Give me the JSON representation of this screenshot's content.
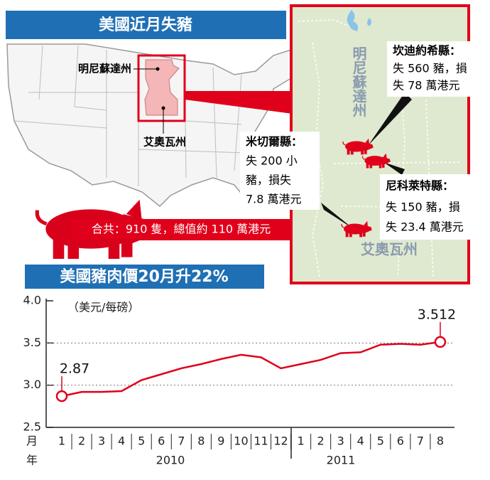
{
  "header": {
    "title": "美國近月失豬"
  },
  "map": {
    "state_labels": [
      "明尼蘇達州",
      "艾奧瓦州"
    ],
    "inset_labels": [
      "明尼蘇達州",
      "艾奧瓦州"
    ],
    "callouts": [
      {
        "title": "坎迪約希縣：",
        "lines": [
          "失 560 豬，損",
          "失 78 萬港元"
        ]
      },
      {
        "title": "米切爾縣：",
        "lines": [
          "失 200 小",
          "豬，損失",
          "7.8 萬港元"
        ]
      },
      {
        "title": "尼科萊特縣：",
        "lines": [
          "失 150 豬，損",
          "失 23.4 萬港元"
        ]
      }
    ],
    "total": "合共：910 隻，總值約 110 萬港元"
  },
  "chart_data": {
    "type": "line",
    "title": "美國豬肉價20月升22%",
    "ylabel": "（美元/每磅）",
    "x_label": "月",
    "x_group_label": "年",
    "x_groups": [
      "2010",
      "2011"
    ],
    "categories": [
      "1",
      "2",
      "3",
      "4",
      "5",
      "6",
      "7",
      "8",
      "9",
      "10",
      "11",
      "12",
      "1",
      "2",
      "3",
      "4",
      "5",
      "6",
      "7",
      "8"
    ],
    "values": [
      2.87,
      2.92,
      2.92,
      2.93,
      3.06,
      3.13,
      3.2,
      3.25,
      3.31,
      3.36,
      3.33,
      3.2,
      3.25,
      3.3,
      3.38,
      3.39,
      3.48,
      3.49,
      3.48,
      3.512
    ],
    "value_labels": [
      "2.87",
      null,
      null,
      null,
      null,
      null,
      null,
      null,
      null,
      null,
      null,
      null,
      null,
      null,
      null,
      null,
      null,
      null,
      null,
      "3.512"
    ],
    "color": "#e0001b",
    "ylim": [
      2.5,
      4.0
    ],
    "yticks": [
      2.5,
      {
        "value": 3,
        "label": "3.0"
      },
      3.5,
      {
        "value": 4,
        "label": "4.0"
      }
    ],
    "grid": true
  }
}
